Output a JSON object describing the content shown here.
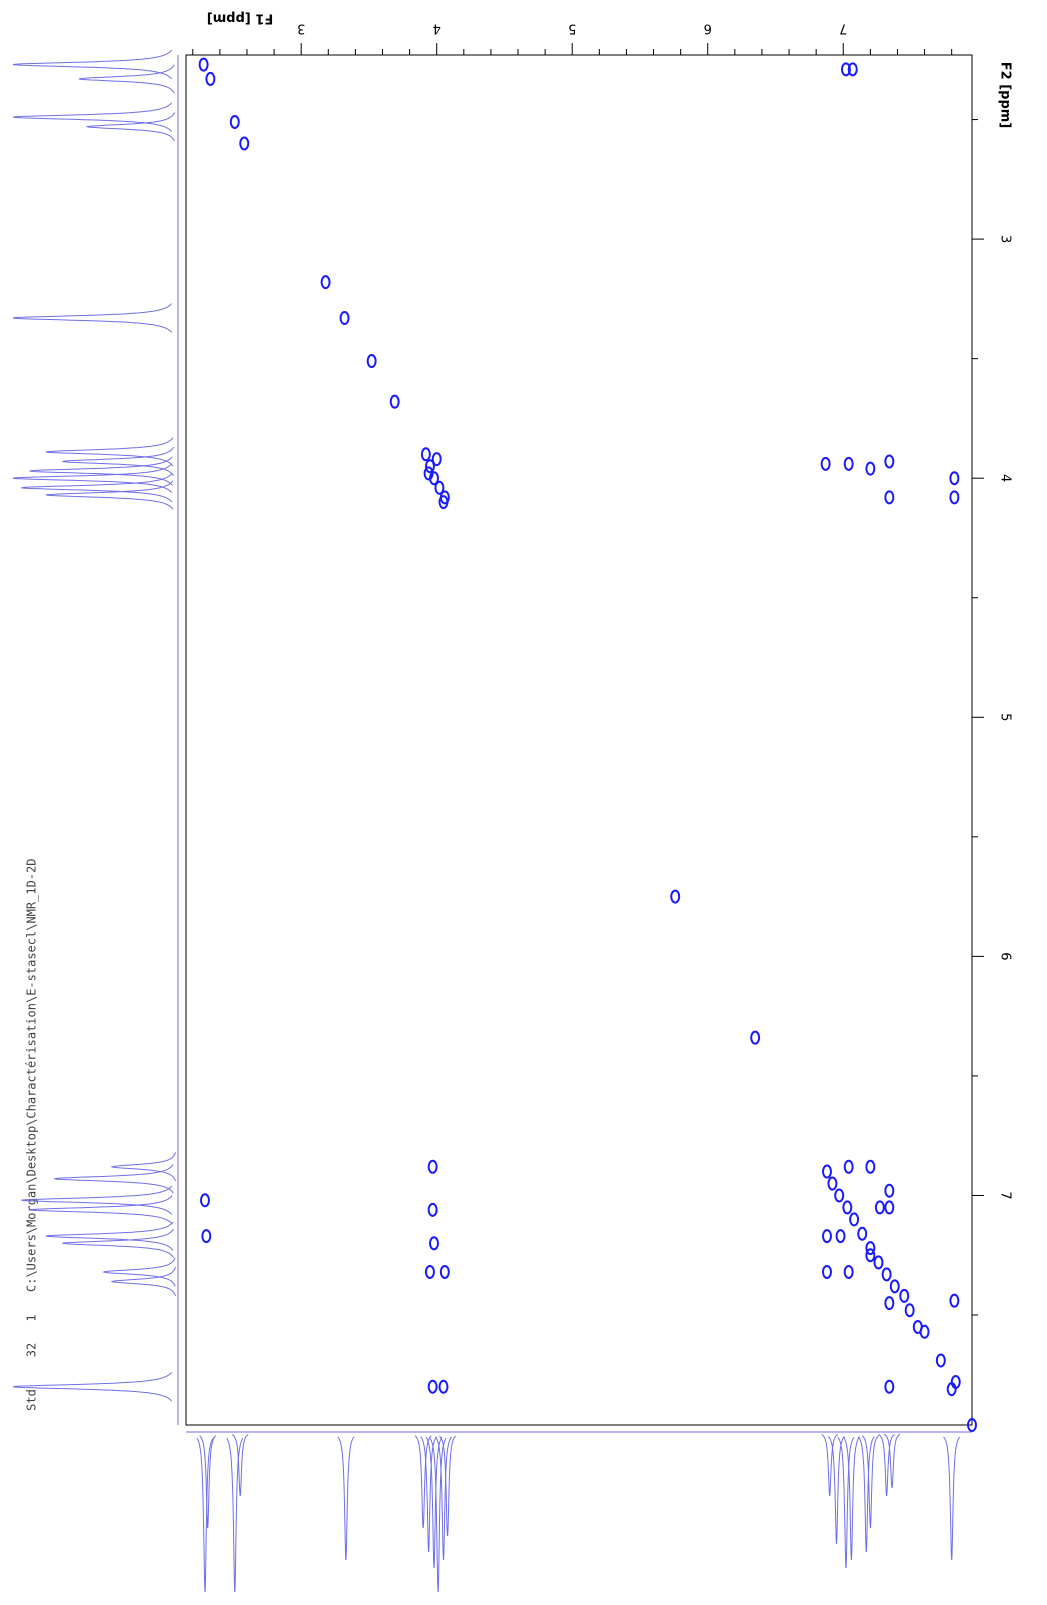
{
  "chart_data": {
    "type": "scatter",
    "x_label": "F1 [ppm]",
    "y_label": "F2 [ppm]",
    "header": [
      "Std",
      "32",
      "1",
      "C:\\Users\\Morgan\\Desktop\\Charactérisation\\E-stasecl\\NMR_1D-2D"
    ],
    "color": "#1a1aff",
    "projection_color": "#6f6fe8",
    "xlim": [
      2.15,
      7.95
    ],
    "ylim": [
      2.23,
      7.96
    ],
    "xticks": [
      3,
      4,
      5,
      6,
      7
    ],
    "yticks": [
      3,
      4,
      5,
      6,
      7
    ],
    "xticks_minor": [
      2.2,
      2.4,
      2.6,
      2.8,
      3.2,
      3.4,
      3.6,
      3.8,
      4.2,
      4.4,
      4.6,
      4.8,
      5.2,
      5.4,
      5.6,
      5.8,
      6.2,
      6.4,
      6.6,
      6.8,
      7.2,
      7.4,
      7.6,
      7.8
    ],
    "yticks_minor": [
      2.5,
      3.5,
      4.5,
      5.5,
      6.5,
      7.5
    ],
    "x": [
      2.28,
      2.33,
      2.51,
      2.58,
      3.18,
      3.32,
      3.52,
      3.69,
      3.92,
      3.95,
      3.98,
      4.02,
      4.06,
      3.94,
      4.0,
      4.05,
      5.76,
      6.35,
      6.88,
      6.92,
      6.97,
      7.03,
      7.08,
      7.14,
      7.2,
      7.26,
      7.32,
      7.38,
      7.45,
      7.49,
      7.6,
      7.72,
      7.8,
      7.83,
      7.95,
      7.02,
      7.07,
      2.29,
      2.3,
      3.97,
      3.97,
      3.98,
      3.95,
      4.06,
      3.97,
      4.05,
      6.87,
      7.04,
      7.2,
      7.34,
      7.82,
      7.34,
      7.82,
      6.88,
      6.88,
      7.04,
      7.2,
      7.34,
      7.34,
      7.04,
      7.2,
      7.34,
      7.34,
      7.55,
      7.82,
      7.27,
      6.98
    ],
    "y": [
      2.27,
      2.33,
      2.51,
      2.6,
      3.18,
      3.33,
      3.51,
      3.68,
      3.9,
      3.95,
      4.0,
      4.04,
      4.08,
      3.98,
      3.92,
      4.1,
      5.75,
      6.34,
      6.9,
      6.95,
      7.0,
      7.05,
      7.1,
      7.16,
      7.22,
      7.28,
      7.33,
      7.38,
      7.42,
      7.48,
      7.57,
      7.69,
      7.81,
      7.78,
      7.96,
      2.29,
      2.29,
      7.02,
      7.17,
      6.88,
      7.06,
      7.2,
      7.32,
      7.32,
      7.8,
      7.8,
      3.94,
      3.94,
      3.96,
      3.93,
      4.0,
      4.08,
      4.08,
      7.17,
      7.32,
      6.88,
      6.88,
      6.98,
      7.05,
      7.32,
      7.25,
      7.45,
      7.8,
      7.55,
      7.44,
      7.05,
      7.17
    ],
    "f2_projection": {
      "ppm": [
        2.27,
        2.33,
        2.49,
        2.53,
        3.33,
        3.89,
        3.93,
        3.97,
        4.0,
        4.04,
        4.07,
        6.88,
        6.93,
        7.02,
        7.06,
        7.17,
        7.2,
        7.32,
        7.36,
        7.8
      ],
      "intensity": [
        100,
        60,
        100,
        55,
        100,
        80,
        70,
        90,
        100,
        95,
        80,
        40,
        75,
        95,
        90,
        80,
        70,
        45,
        40,
        100
      ]
    },
    "f1_projection": {
      "ppm": [
        2.29,
        2.31,
        2.51,
        2.55,
        3.33,
        3.9,
        3.94,
        3.98,
        4.01,
        4.05,
        4.08,
        6.9,
        6.95,
        7.02,
        7.06,
        7.17,
        7.2,
        7.32,
        7.36,
        7.8
      ],
      "intensity": [
        100,
        60,
        100,
        40,
        80,
        60,
        75,
        85,
        100,
        80,
        65,
        40,
        70,
        85,
        80,
        75,
        60,
        40,
        35,
        80
      ]
    }
  }
}
